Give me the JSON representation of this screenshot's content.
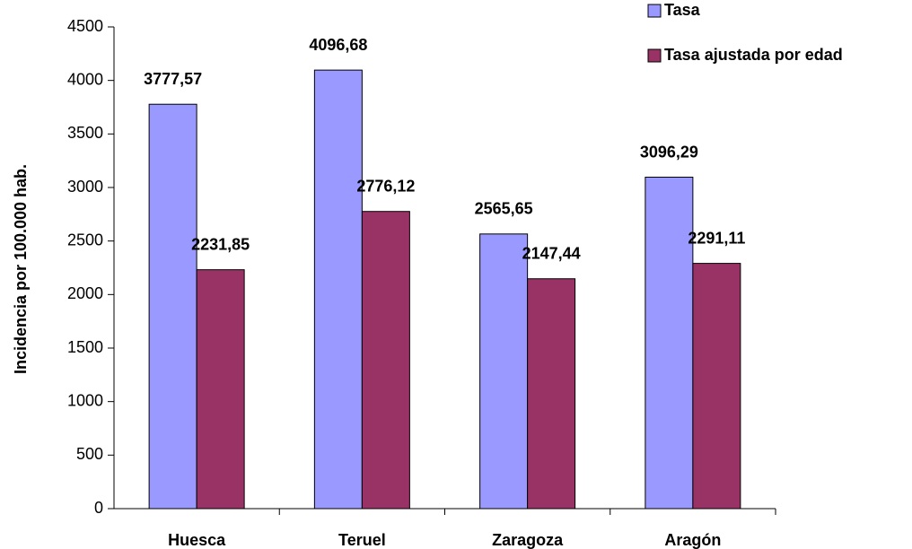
{
  "chart_data": {
    "type": "bar",
    "y_label": "Incidencia por 100.000 hab.",
    "categories": [
      "Huesca",
      "Teruel",
      "Zaragoza",
      "Aragón"
    ],
    "series": [
      {
        "name": "Tasa",
        "color": "#9999ff",
        "values": [
          3777.57,
          4096.68,
          2565.65,
          3096.29
        ],
        "value_labels": [
          "3777,57",
          "4096,68",
          "2565,65",
          "3096,29"
        ]
      },
      {
        "name": "Tasa ajustada por edad",
        "color": "#993366",
        "values": [
          2231.85,
          2776.12,
          2147.44,
          2291.11
        ],
        "value_labels": [
          "2231,85",
          "2776,12",
          "2147,44",
          "2291,11"
        ]
      }
    ],
    "ylim": [
      0,
      4500
    ],
    "yticks": [
      0,
      500,
      1000,
      1500,
      2000,
      2500,
      3000,
      3500,
      4000,
      4500
    ],
    "legend": "top-right"
  }
}
